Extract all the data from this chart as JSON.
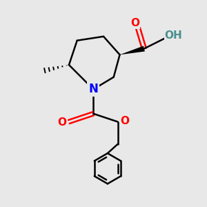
{
  "bg_color": "#e8e8e8",
  "bond_color": "#000000",
  "N_color": "#0000ff",
  "O_color": "#ff0000",
  "H_color": "#4a9090",
  "line_width": 1.8,
  "font_size_atom": 11,
  "fig_size": [
    3.0,
    3.0
  ],
  "dpi": 100,
  "xlim": [
    1.0,
    9.0
  ],
  "ylim": [
    0.5,
    10.5
  ]
}
